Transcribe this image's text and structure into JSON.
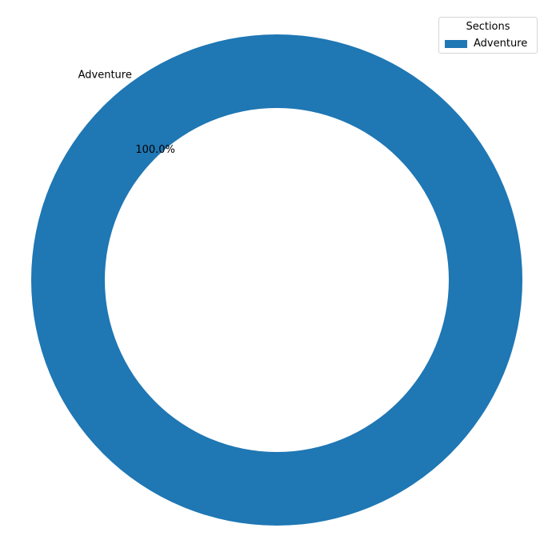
{
  "chart_data": {
    "type": "pie",
    "variant": "donut",
    "categories": [
      "Adventure"
    ],
    "values": [
      100
    ],
    "percent_labels": [
      "100.0%"
    ],
    "colors": [
      "#1f77b4"
    ],
    "legend": {
      "title": "Sections",
      "entries": [
        "Adventure"
      ],
      "placement": "top-right"
    }
  }
}
